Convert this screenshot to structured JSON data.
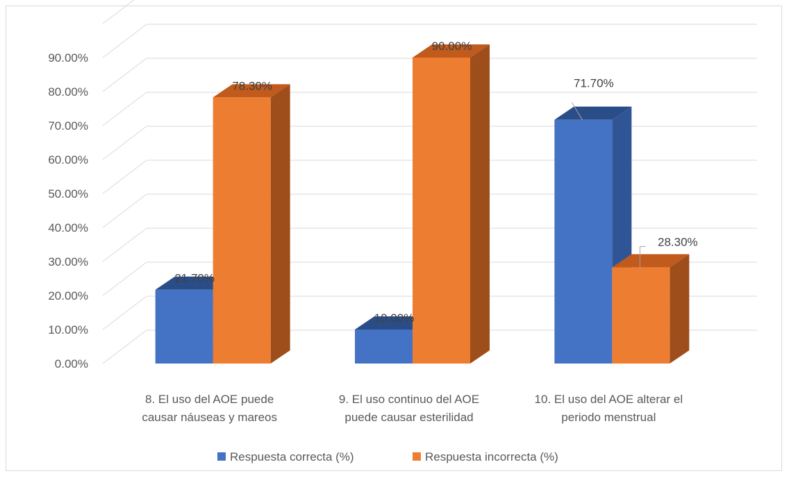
{
  "chart_data": {
    "type": "bar",
    "three_d": true,
    "categories": [
      [
        "8. El uso del AOE puede",
        "causar náuseas y mareos"
      ],
      [
        "9. El uso continuo del AOE",
        "puede causar esterilidad"
      ],
      [
        "10. El uso del AOE alterar el",
        "periodo menstrual"
      ]
    ],
    "series": [
      {
        "name": "Respuesta correcta (%)",
        "values": [
          21.7,
          10.0,
          71.7
        ],
        "labels": [
          "21.70%",
          "10.00%",
          "71.70%"
        ],
        "color": "#4472c4",
        "side_color": "#2f5597",
        "top_color": "#2b4d87"
      },
      {
        "name": "Respuesta incorrecta (%)",
        "values": [
          78.3,
          90.0,
          28.3
        ],
        "labels": [
          "78.30%",
          "90.00%",
          "28.30%"
        ],
        "color": "#ed7d31",
        "side_color": "#9e4e1a",
        "top_color": "#c05a1d"
      }
    ],
    "y_ticks": [
      "0.00%",
      "10.00%",
      "20.00%",
      "30.00%",
      "40.00%",
      "50.00%",
      "60.00%",
      "70.00%",
      "80.00%",
      "90.00%"
    ],
    "ylim": [
      0,
      90
    ],
    "grid": true,
    "legend_position": "bottom",
    "title": "",
    "xlabel": "",
    "ylabel": ""
  }
}
